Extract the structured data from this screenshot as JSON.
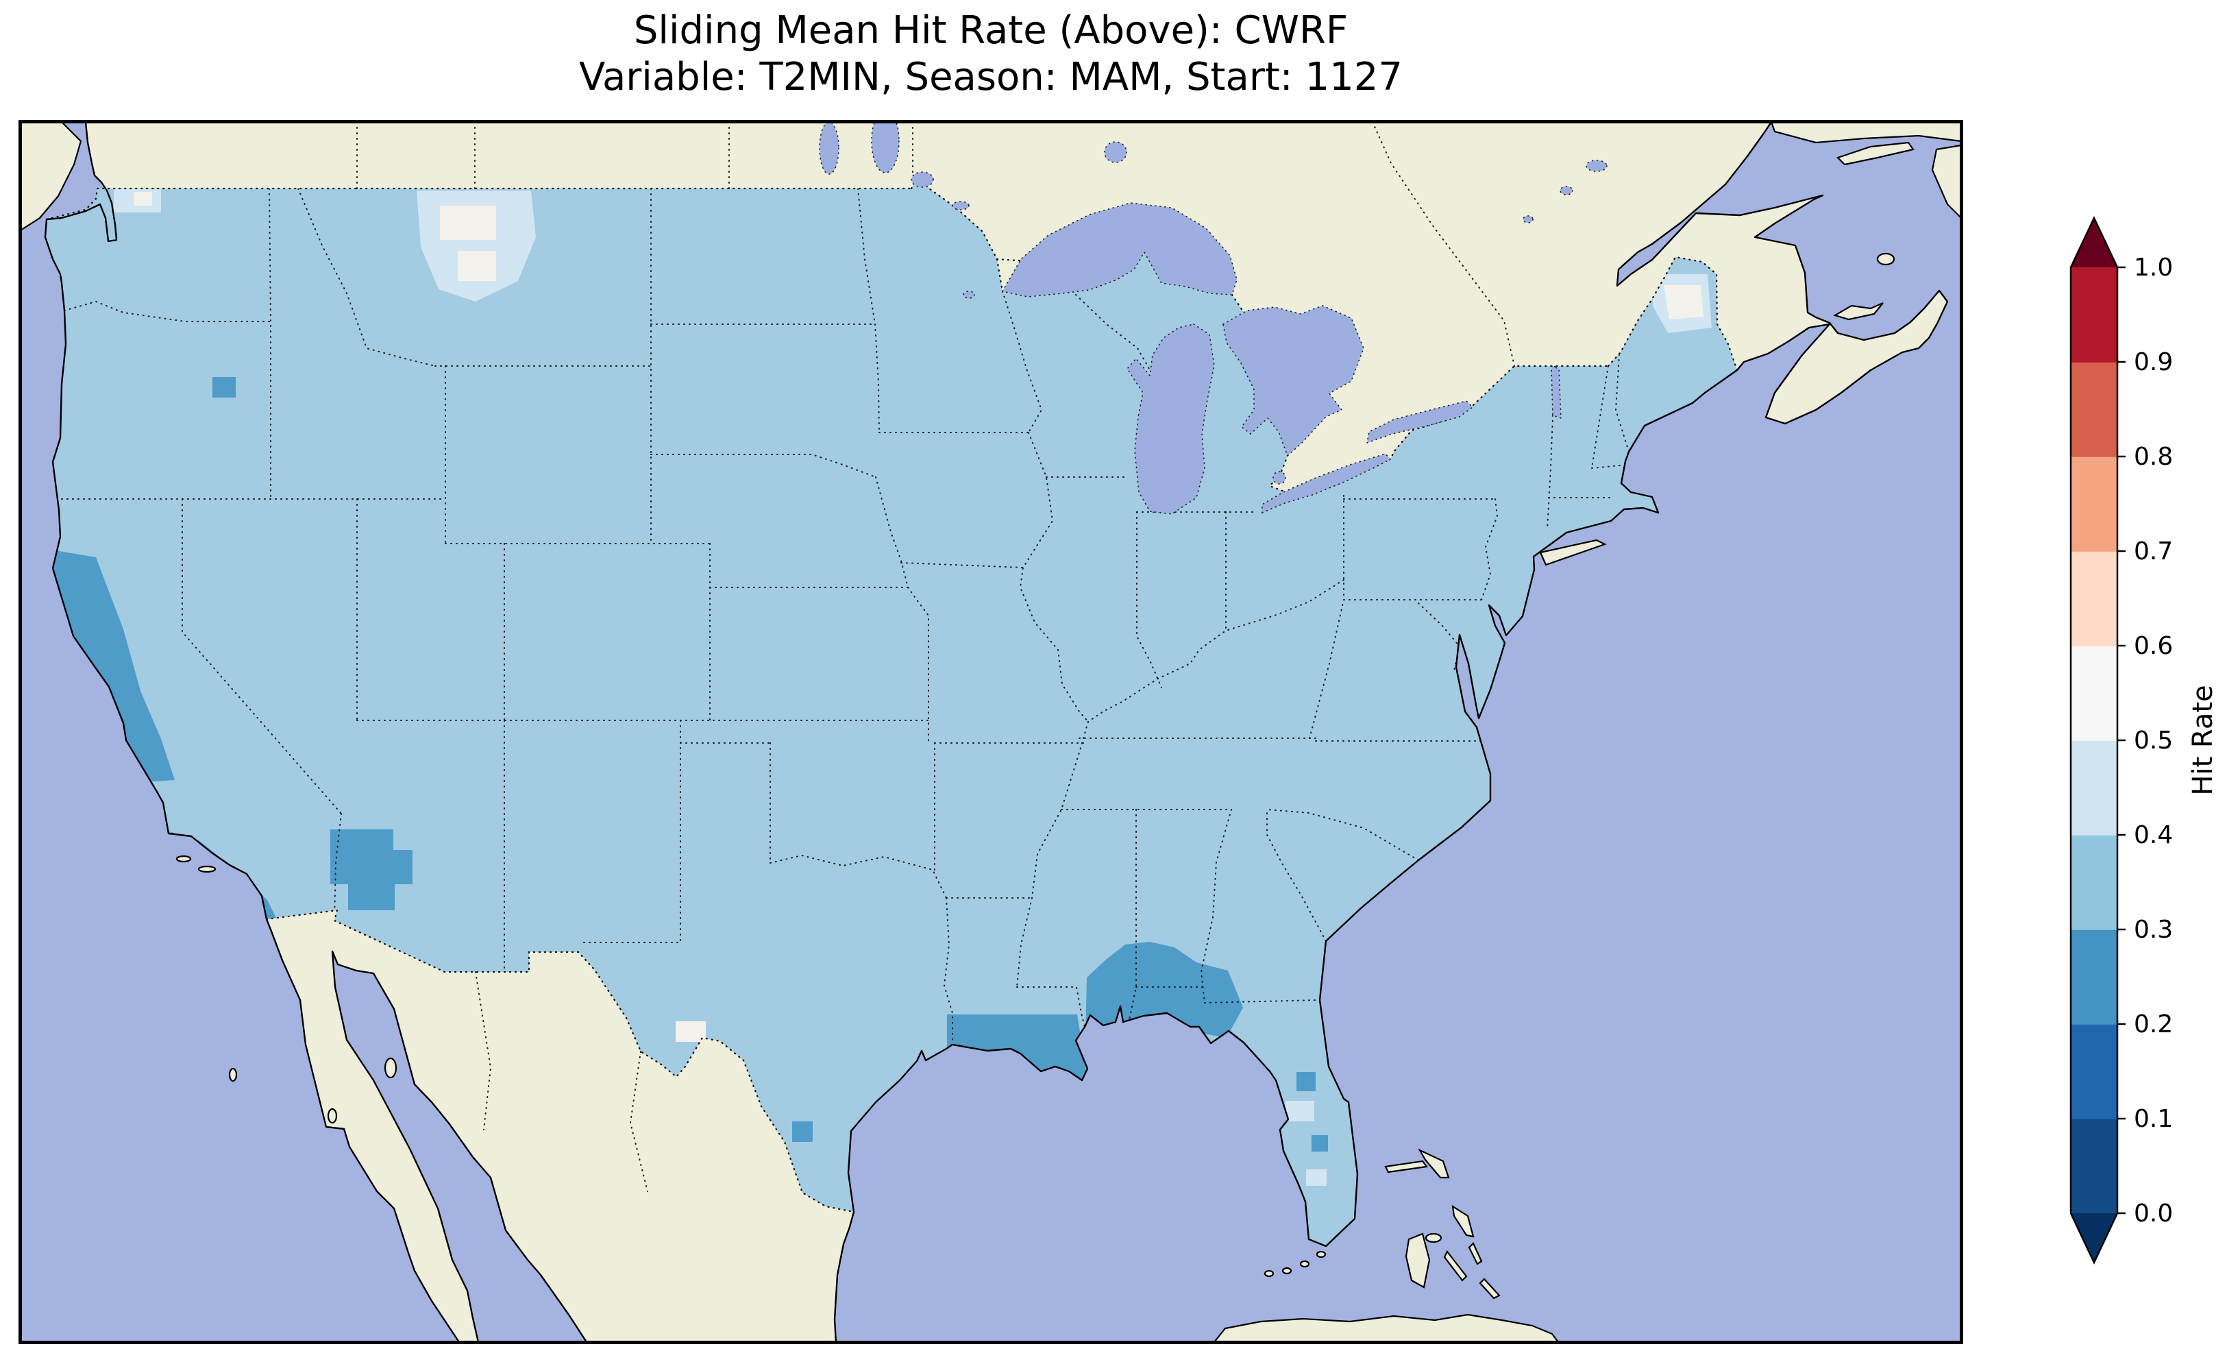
{
  "figure": {
    "title_line1": "Sliding Mean Hit Rate (Above): CWRF",
    "title_line2": "Variable: T2MIN, Season: MAM, Start: 1127"
  },
  "colors": {
    "background": "#ffffff",
    "ocean": "#a5b3e1",
    "land": "#efeedb",
    "lake": "#9dafdf",
    "coastline": "#000000",
    "us_base_fill": "#a3cbe2",
    "patch_dark": "#4f9cc9",
    "patch_light": "#d2e5f2",
    "patch_white": "#f4f2ec"
  },
  "chart_data": {
    "type": "heatmap",
    "title": "Sliding Mean Hit Rate (Above): CWRF",
    "subtitle": "Variable: T2MIN, Season: MAM, Start: 1127",
    "statistic": "Sliding Mean Hit Rate (Above)",
    "model": "CWRF",
    "variable": "T2MIN",
    "season": "MAM",
    "start": "1127",
    "region": "Contiguous United States and surroundings",
    "colorbar": {
      "label": "Hit Rate",
      "range": [
        0.0,
        1.0
      ],
      "ticks": [
        "0.0",
        "0.1",
        "0.2",
        "0.3",
        "0.4",
        "0.5",
        "0.6",
        "0.7",
        "0.8",
        "0.9",
        "1.0"
      ],
      "segment_colors": [
        "#134b85",
        "#2166ac",
        "#4393c3",
        "#92c5de",
        "#d1e5f0",
        "#f7f7f7",
        "#fddbc7",
        "#f4a582",
        "#d6604d",
        "#b2182b"
      ],
      "under_color": "#053061",
      "over_color": "#67001f",
      "colormap": "RdBu_r",
      "extend": "both",
      "orientation": "vertical",
      "legend_position": "right"
    },
    "regions": [
      {
        "area": "Most of the contiguous U.S.",
        "hit_rate": "0.3-0.4"
      },
      {
        "area": "Northern/central California coast (Cape Mendocino to Monterey)",
        "hit_rate": "0.2-0.3"
      },
      {
        "area": "Southern California coast",
        "hit_rate": "0.2-0.3"
      },
      {
        "area": "Western Arizona",
        "hit_rate": "0.2-0.3"
      },
      {
        "area": "Small patch in eastern Oregon",
        "hit_rate": "0.2-0.3"
      },
      {
        "area": "Louisiana Gulf coast",
        "hit_rate": "0.2-0.3"
      },
      {
        "area": "Southern Mississippi, Alabama and Florida panhandle coast",
        "hit_rate": "0.2-0.3"
      },
      {
        "area": "Scattered cells in Florida peninsula",
        "hit_rate": "0.2-0.3"
      },
      {
        "area": "Small patch on south Texas border",
        "hit_rate": "0.2-0.3"
      },
      {
        "area": "North-central Montana",
        "hit_rate": "0.4-0.6"
      },
      {
        "area": "Northern Maine",
        "hit_rate": "0.4-0.6"
      },
      {
        "area": "Small spot in west Texas near the Rio Grande",
        "hit_rate": "0.5-0.6"
      },
      {
        "area": "Small spots in northern Washington",
        "hit_rate": "0.4-0.6"
      }
    ]
  }
}
